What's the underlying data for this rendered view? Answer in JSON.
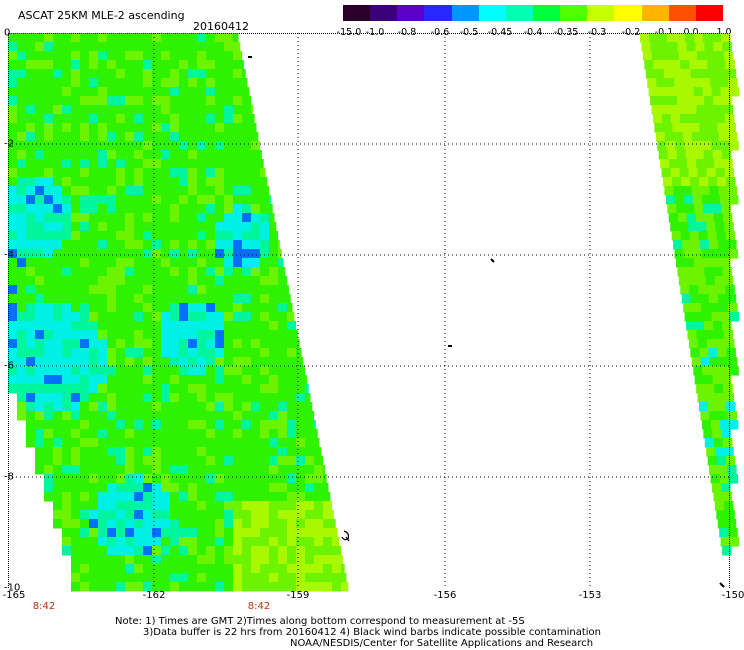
{
  "header": {
    "title": "ASCAT 25KM MLE-2 ascending",
    "date": "20160412"
  },
  "colorbar": {
    "labels": [
      "-15.0",
      "-1.0",
      "-0.8",
      "-0.6",
      "-0.5",
      "-0.45",
      "-0.4",
      "-0.35",
      "-0.3",
      "-0.2",
      "-0.1",
      "0.0",
      "1.0"
    ],
    "colors": [
      "#2a002a",
      "#3c0078",
      "#5a00c8",
      "#2828ff",
      "#0096ff",
      "#00ffff",
      "#00ffb4",
      "#00ff3c",
      "#50ff00",
      "#c8ff00",
      "#ffff00",
      "#ffb400",
      "#ff5000",
      "#ff0000"
    ]
  },
  "axes": {
    "y_labels": [
      "0",
      "-2",
      "-4",
      "-6",
      "-8",
      "-10"
    ],
    "x_labels": [
      "-165",
      "-162",
      "-159",
      "-156",
      "-153",
      "-150"
    ],
    "time_labels": [
      "8:42",
      "8:42"
    ]
  },
  "notes": {
    "line1": "Note: 1) Times are GMT 2)Times along bottom correspond to measurement at -5S",
    "line2": "3)Data buffer is 22 hrs from 20160412 4) Black wind barbs indicate possible contamination",
    "line3": "NOAA/NESDIS/Center for Satellite Applications and Research"
  },
  "palette": {
    "green": "#2ef200",
    "light_green": "#6cf300",
    "yellow_green": "#a8f800",
    "cyan": "#00f0e6",
    "aqua": "#00f59c",
    "blue": "#0070ff",
    "dark": "#2a002a"
  }
}
